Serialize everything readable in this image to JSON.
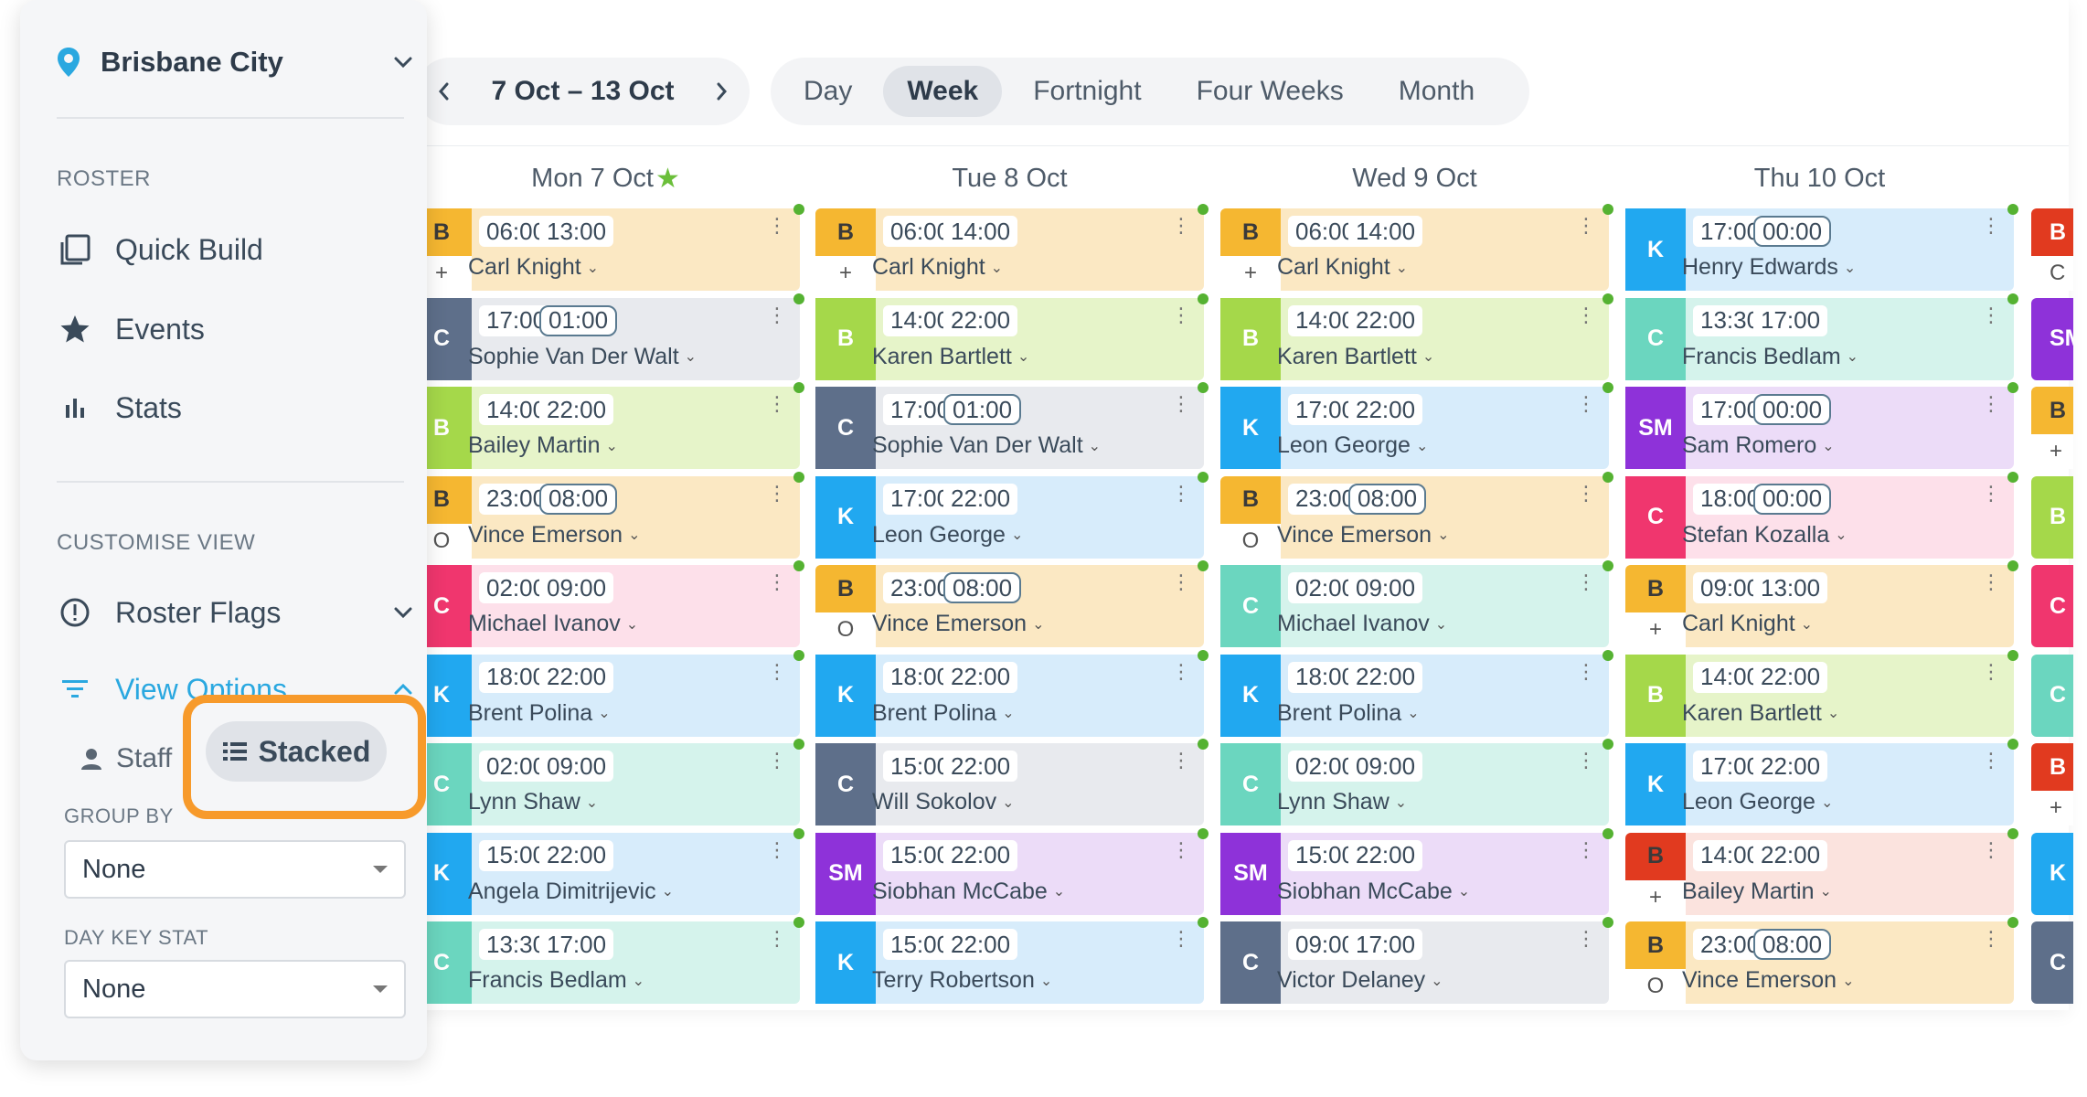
{
  "sidebar": {
    "location": "Brisbane City",
    "roster_heading": "ROSTER",
    "nav": [
      {
        "label": "Quick Build",
        "icon": "copy-icon"
      },
      {
        "label": "Events",
        "icon": "star-icon"
      },
      {
        "label": "Stats",
        "icon": "bar-chart-icon"
      }
    ],
    "customise_heading": "CUSTOMISE VIEW",
    "roster_flags": "Roster Flags",
    "view_options": "View Options",
    "staff_label": "Staff",
    "stacked_label": "Stacked",
    "group_by_label": "GROUP BY",
    "group_by_value": "None",
    "day_key_stat_label": "DAY KEY STAT",
    "day_key_stat_value": "None"
  },
  "toolbar": {
    "date_range": "7 Oct – 13 Oct",
    "views": [
      "Day",
      "Week",
      "Fortnight",
      "Four Weeks",
      "Month"
    ],
    "active_view": "Week"
  },
  "colors": {
    "B": {
      "badge": "#f5b731",
      "bg": "#fbe8c3"
    },
    "Bred": {
      "badge": "#e13a1f",
      "bg": "#fbe3de"
    },
    "C": {
      "badge": "#5e6f8a",
      "bg": "#e8eaee"
    },
    "Cteal": {
      "badge": "#6bd6bf",
      "bg": "#d5f3ec"
    },
    "Cpink": {
      "badge": "#f0366e",
      "bg": "#fde0ea"
    },
    "Bgreen": {
      "badge": "#a5d84a",
      "bg": "#e6f4c9"
    },
    "K": {
      "badge": "#21a8f0",
      "bg": "#d7ecfb"
    },
    "SM": {
      "badge": "#8e32d9",
      "bg": "#ecdcf8"
    }
  },
  "days": [
    {
      "label": "Mon 7 Oct",
      "star": true,
      "shifts": [
        {
          "badge": "B",
          "color": "B",
          "sub": "+",
          "start": "06:00",
          "end": "13:00",
          "boxed": false,
          "name": "Carl Knight"
        },
        {
          "badge": "C",
          "color": "C",
          "start": "17:00",
          "end": "01:00",
          "boxed": true,
          "name": "Sophie Van Der Walt"
        },
        {
          "badge": "B",
          "color": "Bgreen",
          "start": "14:00",
          "end": "22:00",
          "boxed": false,
          "name": "Bailey Martin"
        },
        {
          "badge": "B",
          "color": "B",
          "sub": "O",
          "start": "23:00",
          "end": "08:00",
          "boxed": true,
          "name": "Vince Emerson"
        },
        {
          "badge": "C",
          "color": "Cpink",
          "start": "02:00",
          "end": "09:00",
          "boxed": false,
          "name": "Michael Ivanov"
        },
        {
          "badge": "K",
          "color": "K",
          "start": "18:00",
          "end": "22:00",
          "boxed": false,
          "name": "Brent Polina"
        },
        {
          "badge": "C",
          "color": "Cteal",
          "start": "02:00",
          "end": "09:00",
          "boxed": false,
          "name": "Lynn Shaw"
        },
        {
          "badge": "K",
          "color": "K",
          "start": "15:00",
          "end": "22:00",
          "boxed": false,
          "name": "Angela Dimitrijevic"
        },
        {
          "badge": "C",
          "color": "Cteal",
          "start": "13:30",
          "end": "17:00",
          "boxed": false,
          "name": "Francis Bedlam"
        }
      ]
    },
    {
      "label": "Tue 8 Oct",
      "star": false,
      "shifts": [
        {
          "badge": "B",
          "color": "B",
          "sub": "+",
          "start": "06:00",
          "end": "14:00",
          "boxed": false,
          "name": "Carl Knight"
        },
        {
          "badge": "B",
          "color": "Bgreen",
          "start": "14:00",
          "end": "22:00",
          "boxed": false,
          "name": "Karen Bartlett"
        },
        {
          "badge": "C",
          "color": "C",
          "start": "17:00",
          "end": "01:00",
          "boxed": true,
          "name": "Sophie Van Der Walt"
        },
        {
          "badge": "K",
          "color": "K",
          "start": "17:00",
          "end": "22:00",
          "boxed": false,
          "name": "Leon George"
        },
        {
          "badge": "B",
          "color": "B",
          "sub": "O",
          "start": "23:00",
          "end": "08:00",
          "boxed": true,
          "name": "Vince Emerson"
        },
        {
          "badge": "K",
          "color": "K",
          "start": "18:00",
          "end": "22:00",
          "boxed": false,
          "name": "Brent Polina"
        },
        {
          "badge": "C",
          "color": "C",
          "start": "15:00",
          "end": "22:00",
          "boxed": false,
          "name": "Will Sokolov"
        },
        {
          "badge": "SM",
          "color": "SM",
          "start": "15:00",
          "end": "22:00",
          "boxed": false,
          "name": "Siobhan McCabe"
        },
        {
          "badge": "K",
          "color": "K",
          "start": "15:00",
          "end": "22:00",
          "boxed": false,
          "name": "Terry Robertson"
        }
      ]
    },
    {
      "label": "Wed 9 Oct",
      "star": false,
      "shifts": [
        {
          "badge": "B",
          "color": "B",
          "sub": "+",
          "start": "06:00",
          "end": "14:00",
          "boxed": false,
          "name": "Carl Knight"
        },
        {
          "badge": "B",
          "color": "Bgreen",
          "start": "14:00",
          "end": "22:00",
          "boxed": false,
          "name": "Karen Bartlett"
        },
        {
          "badge": "K",
          "color": "K",
          "start": "17:00",
          "end": "22:00",
          "boxed": false,
          "name": "Leon George"
        },
        {
          "badge": "B",
          "color": "B",
          "sub": "O",
          "start": "23:00",
          "end": "08:00",
          "boxed": true,
          "name": "Vince Emerson"
        },
        {
          "badge": "C",
          "color": "Cteal",
          "start": "02:00",
          "end": "09:00",
          "boxed": false,
          "name": "Michael Ivanov"
        },
        {
          "badge": "K",
          "color": "K",
          "start": "18:00",
          "end": "22:00",
          "boxed": false,
          "name": "Brent Polina"
        },
        {
          "badge": "C",
          "color": "Cteal",
          "start": "02:00",
          "end": "09:00",
          "boxed": false,
          "name": "Lynn Shaw"
        },
        {
          "badge": "SM",
          "color": "SM",
          "start": "15:00",
          "end": "22:00",
          "boxed": false,
          "name": "Siobhan McCabe"
        },
        {
          "badge": "C",
          "color": "C",
          "start": "09:00",
          "end": "17:00",
          "boxed": false,
          "name": "Victor Delaney"
        }
      ]
    },
    {
      "label": "Thu 10 Oct",
      "star": false,
      "shifts": [
        {
          "badge": "K",
          "color": "K",
          "start": "17:00",
          "end": "00:00",
          "boxed": true,
          "name": "Henry Edwards"
        },
        {
          "badge": "C",
          "color": "Cteal",
          "start": "13:30",
          "end": "17:00",
          "boxed": false,
          "name": "Francis Bedlam"
        },
        {
          "badge": "SM",
          "color": "SM",
          "start": "17:00",
          "end": "00:00",
          "boxed": true,
          "name": "Sam Romero"
        },
        {
          "badge": "C",
          "color": "Cpink",
          "start": "18:00",
          "end": "00:00",
          "boxed": true,
          "name": "Stefan Kozalla"
        },
        {
          "badge": "B",
          "color": "B",
          "sub": "+",
          "start": "09:00",
          "end": "13:00",
          "boxed": false,
          "name": "Carl Knight"
        },
        {
          "badge": "B",
          "color": "Bgreen",
          "start": "14:00",
          "end": "22:00",
          "boxed": false,
          "name": "Karen Bartlett"
        },
        {
          "badge": "K",
          "color": "K",
          "start": "17:00",
          "end": "22:00",
          "boxed": false,
          "name": "Leon George"
        },
        {
          "badge": "B",
          "color": "Bred",
          "sub": "+",
          "start": "14:00",
          "end": "22:00",
          "boxed": false,
          "name": "Bailey Martin"
        },
        {
          "badge": "B",
          "color": "B",
          "sub": "O",
          "start": "23:00",
          "end": "08:00",
          "boxed": true,
          "name": "Vince Emerson"
        }
      ]
    }
  ],
  "edge_column": [
    {
      "badge": "B",
      "color": "Bred",
      "sub": "C"
    },
    {
      "badge": "SM",
      "color": "SM"
    },
    {
      "badge": "B",
      "color": "B",
      "sub": "+"
    },
    {
      "badge": "B",
      "color": "Bgreen"
    },
    {
      "badge": "C",
      "color": "Cpink"
    },
    {
      "badge": "C",
      "color": "Cteal"
    },
    {
      "badge": "B",
      "color": "Bred",
      "sub": "+"
    },
    {
      "badge": "K",
      "color": "K"
    },
    {
      "badge": "C",
      "color": "C"
    }
  ]
}
